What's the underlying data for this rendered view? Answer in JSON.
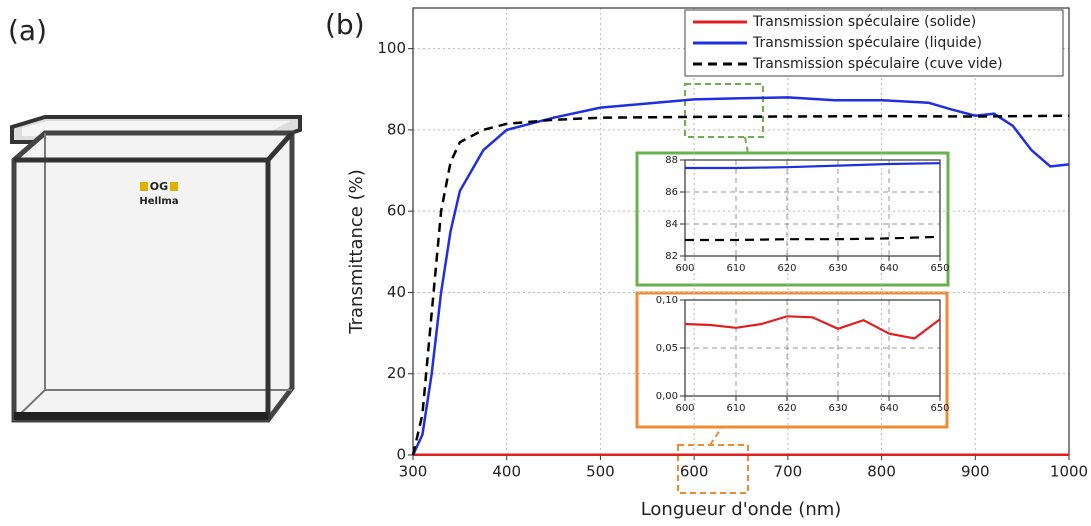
{
  "panels": [
    "(a)",
    "(b)"
  ],
  "photo_labels": [
    "OG",
    "Hellma"
  ],
  "chart_data": [
    {
      "type": "line",
      "x_label": "Longueur d'onde (nm)",
      "y_label": "Transmittance (%)",
      "xlim": [
        300,
        1000
      ],
      "ylim": [
        0,
        110
      ],
      "xticks": [
        300,
        400,
        500,
        600,
        700,
        800,
        900,
        1000
      ],
      "yticks": [
        0,
        20,
        40,
        60,
        80,
        100
      ],
      "grid": true,
      "legend": "top-right",
      "series": [
        {
          "name": "Transmission spéculaire (solide)",
          "color": "#e02020",
          "dash": false,
          "x": [
            300,
            400,
            500,
            600,
            700,
            800,
            900,
            1000
          ],
          "values": [
            0.07,
            0.07,
            0.07,
            0.07,
            0.07,
            0.07,
            0.07,
            0.07
          ]
        },
        {
          "name": "Transmission spéculaire (liquide)",
          "color": "#1f2fe0",
          "dash": false,
          "x": [
            300,
            310,
            320,
            330,
            340,
            350,
            375,
            400,
            450,
            500,
            550,
            600,
            650,
            700,
            750,
            800,
            850,
            875,
            900,
            920,
            940,
            960,
            980,
            1000
          ],
          "values": [
            0,
            5,
            20,
            40,
            55,
            65,
            75,
            80,
            83,
            85.5,
            86.5,
            87.5,
            87.8,
            88,
            87.3,
            87.3,
            86.7,
            85,
            83.5,
            84,
            81,
            75,
            71,
            71.5
          ]
        },
        {
          "name": "Transmission spéculaire (cuve vide)",
          "color": "#000000",
          "dash": true,
          "x": [
            300,
            310,
            320,
            330,
            340,
            350,
            375,
            400,
            450,
            500,
            600,
            700,
            800,
            900,
            1000
          ],
          "values": [
            0,
            10,
            35,
            60,
            72,
            77,
            80,
            81.5,
            82.5,
            83,
            83.2,
            83.3,
            83.4,
            83.3,
            83.5
          ]
        }
      ]
    },
    {
      "type": "line",
      "xlim": [
        600,
        650
      ],
      "ylim": [
        82,
        88
      ],
      "xticks": [
        600,
        610,
        620,
        630,
        640,
        650
      ],
      "yticks": [
        82,
        84,
        86,
        88
      ],
      "grid": true,
      "series": [
        {
          "color": "#1f2fe0",
          "dash": false,
          "x": [
            600,
            610,
            620,
            630,
            640,
            650
          ],
          "values": [
            87.5,
            87.5,
            87.55,
            87.65,
            87.75,
            87.8
          ]
        },
        {
          "color": "#000000",
          "dash": true,
          "x": [
            600,
            610,
            620,
            630,
            640,
            650
          ],
          "values": [
            83.0,
            83.0,
            83.05,
            83.05,
            83.1,
            83.2
          ]
        }
      ]
    },
    {
      "type": "line",
      "xlim": [
        600,
        650
      ],
      "ylim": [
        0,
        0.1
      ],
      "xticks": [
        600,
        610,
        620,
        630,
        640,
        650
      ],
      "yticks": [
        {
          "value": 0,
          "label": "0,00"
        },
        {
          "value": 0.05,
          "label": "0,05"
        },
        {
          "value": 0.1,
          "label": "0,10"
        }
      ],
      "grid": true,
      "series": [
        {
          "color": "#e02020",
          "dash": false,
          "x": [
            600,
            605,
            610,
            615,
            620,
            625,
            630,
            635,
            640,
            645,
            650
          ],
          "values": [
            0.075,
            0.074,
            0.071,
            0.075,
            0.083,
            0.082,
            0.07,
            0.079,
            0.065,
            0.06,
            0.08
          ]
        }
      ]
    }
  ]
}
